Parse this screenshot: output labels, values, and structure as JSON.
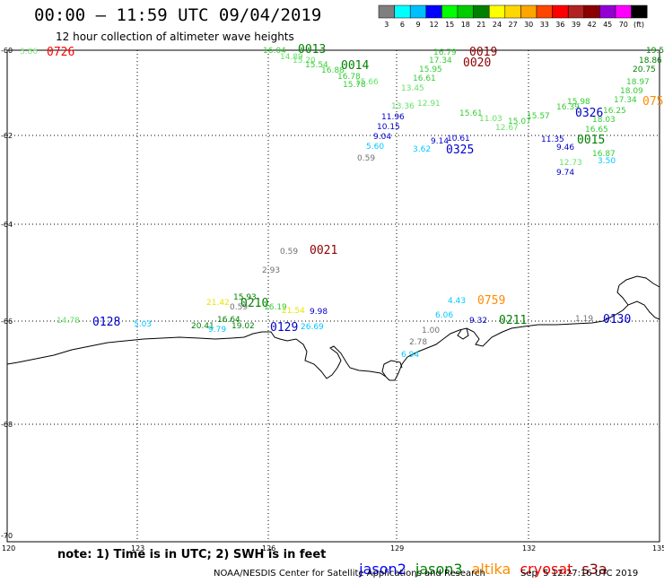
{
  "header": {
    "title": "00:00 – 11:59 UTC 09/04/2019",
    "subtitle": "12 hour collection of altimeter wave heights"
  },
  "colorbar": {
    "unit": "(ft)",
    "bins": [
      {
        "label": "3",
        "color": "#7f7f7f"
      },
      {
        "label": "6",
        "color": "#00ffff"
      },
      {
        "label": "9",
        "color": "#00bfff"
      },
      {
        "label": "12",
        "color": "#0000ff"
      },
      {
        "label": "15",
        "color": "#00ff00"
      },
      {
        "label": "18",
        "color": "#00cc00"
      },
      {
        "label": "21",
        "color": "#008000"
      },
      {
        "label": "24",
        "color": "#ffff00"
      },
      {
        "label": "27",
        "color": "#ffd700"
      },
      {
        "label": "30",
        "color": "#ffa500"
      },
      {
        "label": "33",
        "color": "#ff4500"
      },
      {
        "label": "36",
        "color": "#ff0000"
      },
      {
        "label": "39",
        "color": "#b22222"
      },
      {
        "label": "42",
        "color": "#8b0000"
      },
      {
        "label": "45",
        "color": "#9400d3"
      },
      {
        "label": "70",
        "color": "#ff00ff"
      },
      {
        "label": "",
        "color": "#000000"
      }
    ]
  },
  "axes": {
    "lat_labels": [
      "-60",
      "-62",
      "-64",
      "-66",
      "-68",
      "-70"
    ],
    "lon_labels": [
      "120",
      "123",
      "126",
      "129",
      "132",
      "135"
    ]
  },
  "pass_labels": [
    {
      "text": "0726",
      "color": "#ff0000"
    },
    {
      "text": "0013",
      "color": "#008000"
    },
    {
      "text": "0014",
      "color": "#008000"
    },
    {
      "text": "0019",
      "color": "#8b0000"
    },
    {
      "text": "0020",
      "color": "#8b0000"
    },
    {
      "text": "0326",
      "color": "#0000cd"
    },
    {
      "text": "075",
      "color": "#ff8c00"
    },
    {
      "text": "0325",
      "color": "#0000cd"
    },
    {
      "text": "0015",
      "color": "#008000"
    },
    {
      "text": "0021",
      "color": "#8b0000"
    },
    {
      "text": "0210",
      "color": "#008000"
    },
    {
      "text": "0759",
      "color": "#ff8c00"
    },
    {
      "text": "0128",
      "color": "#0000cd"
    },
    {
      "text": "0129",
      "color": "#0000cd"
    },
    {
      "text": "0211",
      "color": "#008000"
    },
    {
      "text": "0130",
      "color": "#0000cd"
    }
  ],
  "wave_values": [
    {
      "text": "3.86",
      "color": "#7fe67f"
    },
    {
      "text": "16.04",
      "color": "#33cc33"
    },
    {
      "text": "14.89",
      "color": "#66e066"
    },
    {
      "text": "15.20",
      "color": "#66e066"
    },
    {
      "text": "15.54",
      "color": "#33cc33"
    },
    {
      "text": "16.88",
      "color": "#33cc33"
    },
    {
      "text": "16.78",
      "color": "#33cc33"
    },
    {
      "text": "15.66",
      "color": "#66e066"
    },
    {
      "text": "15.78",
      "color": "#33cc33"
    },
    {
      "text": "16.79",
      "color": "#33cc33"
    },
    {
      "text": "17.34",
      "color": "#33cc33"
    },
    {
      "text": "15.95",
      "color": "#33cc33"
    },
    {
      "text": "16.61",
      "color": "#33cc33"
    },
    {
      "text": "13.45",
      "color": "#66e066"
    },
    {
      "text": "13.36",
      "color": "#66e066"
    },
    {
      "text": "12.91",
      "color": "#66e066"
    },
    {
      "text": "11.96",
      "color": "#0000cd"
    },
    {
      "text": "10.15",
      "color": "#0000cd"
    },
    {
      "text": "9.04",
      "color": "#0000cd"
    },
    {
      "text": "5.60",
      "color": "#00c8ff"
    },
    {
      "text": "0.59",
      "color": "#707070"
    },
    {
      "text": "3.62",
      "color": "#00c8ff"
    },
    {
      "text": "9.14",
      "color": "#0000cd"
    },
    {
      "text": "10.61",
      "color": "#0000cd"
    },
    {
      "text": "15.61",
      "color": "#33cc33"
    },
    {
      "text": "11.03",
      "color": "#66e066"
    },
    {
      "text": "12.67",
      "color": "#66e066"
    },
    {
      "text": "15.07",
      "color": "#33cc33"
    },
    {
      "text": "15.57",
      "color": "#33cc33"
    },
    {
      "text": "11.35",
      "color": "#0000cd"
    },
    {
      "text": "9.46",
      "color": "#0000cd"
    },
    {
      "text": "12.73",
      "color": "#66e066"
    },
    {
      "text": "16.87",
      "color": "#33cc33"
    },
    {
      "text": "9.74",
      "color": "#0000cd"
    },
    {
      "text": "3.50",
      "color": "#00c8ff"
    },
    {
      "text": "16.65",
      "color": "#33cc33"
    },
    {
      "text": "18.03",
      "color": "#33cc33"
    },
    {
      "text": "16.25",
      "color": "#33cc33"
    },
    {
      "text": "16.39",
      "color": "#33cc33"
    },
    {
      "text": "15.98",
      "color": "#33cc33"
    },
    {
      "text": "17.34",
      "color": "#33cc33"
    },
    {
      "text": "18.09",
      "color": "#33cc33"
    },
    {
      "text": "18.97",
      "color": "#33cc33"
    },
    {
      "text": "20.75",
      "color": "#008000"
    },
    {
      "text": "18.86",
      "color": "#008000"
    },
    {
      "text": "19.5",
      "color": "#008000"
    },
    {
      "text": "0.59",
      "color": "#707070"
    },
    {
      "text": "2.93",
      "color": "#707070"
    },
    {
      "text": "21.42",
      "color": "#e6e600"
    },
    {
      "text": "15.93",
      "color": "#008000"
    },
    {
      "text": "0.59",
      "color": "#707070"
    },
    {
      "text": "16.19",
      "color": "#33cc33"
    },
    {
      "text": "21.54",
      "color": "#e6e600"
    },
    {
      "text": "9.98",
      "color": "#0000cd"
    },
    {
      "text": "16.64",
      "color": "#008000"
    },
    {
      "text": "20.41",
      "color": "#008000"
    },
    {
      "text": "19.02",
      "color": "#008000"
    },
    {
      "text": "9.79",
      "color": "#00c8ff"
    },
    {
      "text": "26.69",
      "color": "#00c8ff"
    },
    {
      "text": "14.78",
      "color": "#66e066"
    },
    {
      "text": "5.03",
      "color": "#00c8ff"
    },
    {
      "text": "4.43",
      "color": "#00c8ff"
    },
    {
      "text": "6.06",
      "color": "#00c8ff"
    },
    {
      "text": "9.32",
      "color": "#0000cd"
    },
    {
      "text": "1.00",
      "color": "#707070"
    },
    {
      "text": "2.78",
      "color": "#707070"
    },
    {
      "text": "6.94",
      "color": "#00c8ff"
    },
    {
      "text": "1.19",
      "color": "#707070"
    }
  ],
  "footer": {
    "note": "note: 1) Time is in UTC; 2) SWH is in feet",
    "satellites": [
      {
        "name": "jason2",
        "color": "#0000ff"
      },
      {
        "name": "jason3",
        "color": "#008000"
      },
      {
        "name": "altika",
        "color": "#ff8c00"
      },
      {
        "name": "cryosat",
        "color": "#ff0000"
      },
      {
        "name": "s3a",
        "color": "#8b0000"
      }
    ],
    "credit": "NOAA/NESDIS Center for Satellite Applications and Research",
    "timestamp": "Sep  5 12:27:16 UTC 2019"
  }
}
